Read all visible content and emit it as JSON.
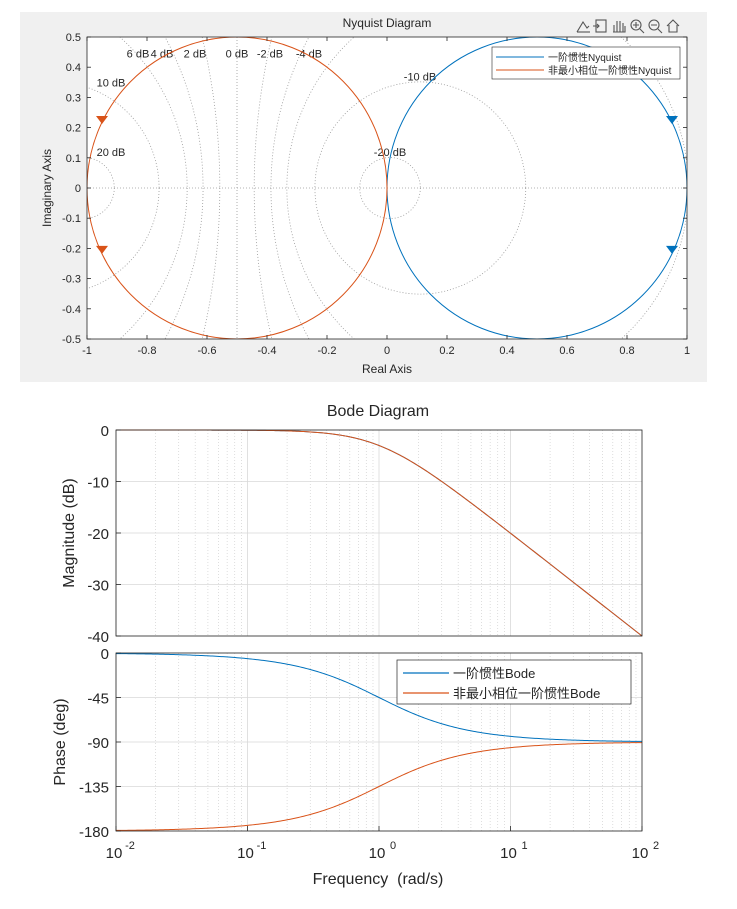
{
  "colors": {
    "series1": "#0072BD",
    "series2": "#D95319",
    "figure_bg": "#f0f0f0",
    "grid": "#d9d9d9",
    "grid_dotted": "#9a9a9a",
    "axis": "#262626"
  },
  "toolbar": {
    "icons": [
      "data-tips-icon",
      "export-icon",
      "pan-hand-icon",
      "zoom-in-icon",
      "zoom-out-icon",
      "home-icon"
    ]
  },
  "chart_data": [
    {
      "type": "line",
      "name": "nyquist",
      "title": "Nyquist Diagram",
      "xlabel": "Real Axis",
      "ylabel": "Imaginary Axis",
      "xlim": [
        -1,
        1
      ],
      "ylim": [
        -0.5,
        0.5
      ],
      "xticks": [
        -1,
        -0.8,
        -0.6,
        -0.4,
        -0.2,
        0,
        0.2,
        0.4,
        0.6,
        0.8,
        1
      ],
      "xtick_labels": [
        "-1",
        "-0.8",
        "-0.6",
        "-0.4",
        "-0.2",
        "0",
        "0.2",
        "0.4",
        "0.6",
        "0.8",
        "1"
      ],
      "yticks": [
        0.5,
        0.4,
        0.3,
        0.2,
        0.1,
        0,
        -0.1,
        -0.2,
        -0.3,
        -0.4,
        -0.5
      ],
      "ytick_labels": [
        "0.5",
        "0.4",
        "0.3",
        "0.2",
        "0.1",
        "0",
        "-0.1",
        "-0.2",
        "-0.3",
        "-0.4",
        "-0.5"
      ],
      "grid_db_circles": [
        -20,
        -10,
        -6,
        -4,
        -2,
        0,
        2,
        4,
        6,
        10,
        20
      ],
      "grid_labels": [
        {
          "text": "6 dB",
          "x": -0.83,
          "y": 0.445
        },
        {
          "text": "4 dB",
          "x": -0.75,
          "y": 0.445
        },
        {
          "text": "2 dB",
          "x": -0.64,
          "y": 0.445
        },
        {
          "text": "0 dB",
          "x": -0.5,
          "y": 0.445
        },
        {
          "text": "-2 dB",
          "x": -0.39,
          "y": 0.445
        },
        {
          "text": "-4 dB",
          "x": -0.26,
          "y": 0.445
        },
        {
          "text": "10 dB",
          "x": -0.92,
          "y": 0.35
        },
        {
          "text": "-10 dB",
          "x": 0.11,
          "y": 0.37
        },
        {
          "text": "20 dB",
          "x": -0.92,
          "y": 0.12
        },
        {
          "text": "-20 dB",
          "x": 0.01,
          "y": 0.12
        }
      ],
      "series": [
        {
          "name": "一阶惯性Nyquist",
          "color": "#0072BD",
          "center": [
            0.5,
            0
          ],
          "radius": 0.5,
          "arrows": [
            [
              0.95,
              0.225
            ],
            [
              0.95,
              -0.205
            ]
          ]
        },
        {
          "name": "非最小相位一阶惯性Nyquist",
          "color": "#D95319",
          "center": [
            -0.5,
            0
          ],
          "radius": 0.5,
          "arrows": [
            [
              -0.95,
              0.225
            ],
            [
              -0.95,
              -0.205
            ]
          ]
        }
      ],
      "legend": "top-right"
    },
    {
      "type": "line",
      "name": "bode",
      "title": "Bode Diagram",
      "xlabel": "Frequency  (rad/s)",
      "xscale": "log",
      "xlim": [
        0.01,
        100
      ],
      "xtick_exps": [
        "-2",
        "-1",
        "0",
        "1",
        "2"
      ],
      "xtick_base": "10",
      "magnitude": {
        "ylabel": "Magnitude (dB)",
        "ylim": [
          -40,
          0
        ],
        "yticks": [
          0,
          -10,
          -20,
          -30,
          -40
        ],
        "ytick_labels": [
          "0",
          "-10",
          "-20",
          "-30",
          "-40"
        ],
        "model": "-10*log10(1+w^2)"
      },
      "phase": {
        "ylabel": "Phase (deg)",
        "ylim": [
          -180,
          0
        ],
        "yticks": [
          0,
          -45,
          -90,
          -135,
          -180
        ],
        "ytick_labels": [
          "0",
          "-45",
          "-90",
          "-135",
          "-180"
        ]
      },
      "series": [
        {
          "name": "一阶惯性Bode",
          "color": "#0072BD",
          "phase_model": "-atan(w)"
        },
        {
          "name": "非最小相位一阶惯性Bode",
          "color": "#D95319",
          "phase_model": "-180+atan(w)"
        }
      ],
      "legend": "top-right"
    }
  ]
}
